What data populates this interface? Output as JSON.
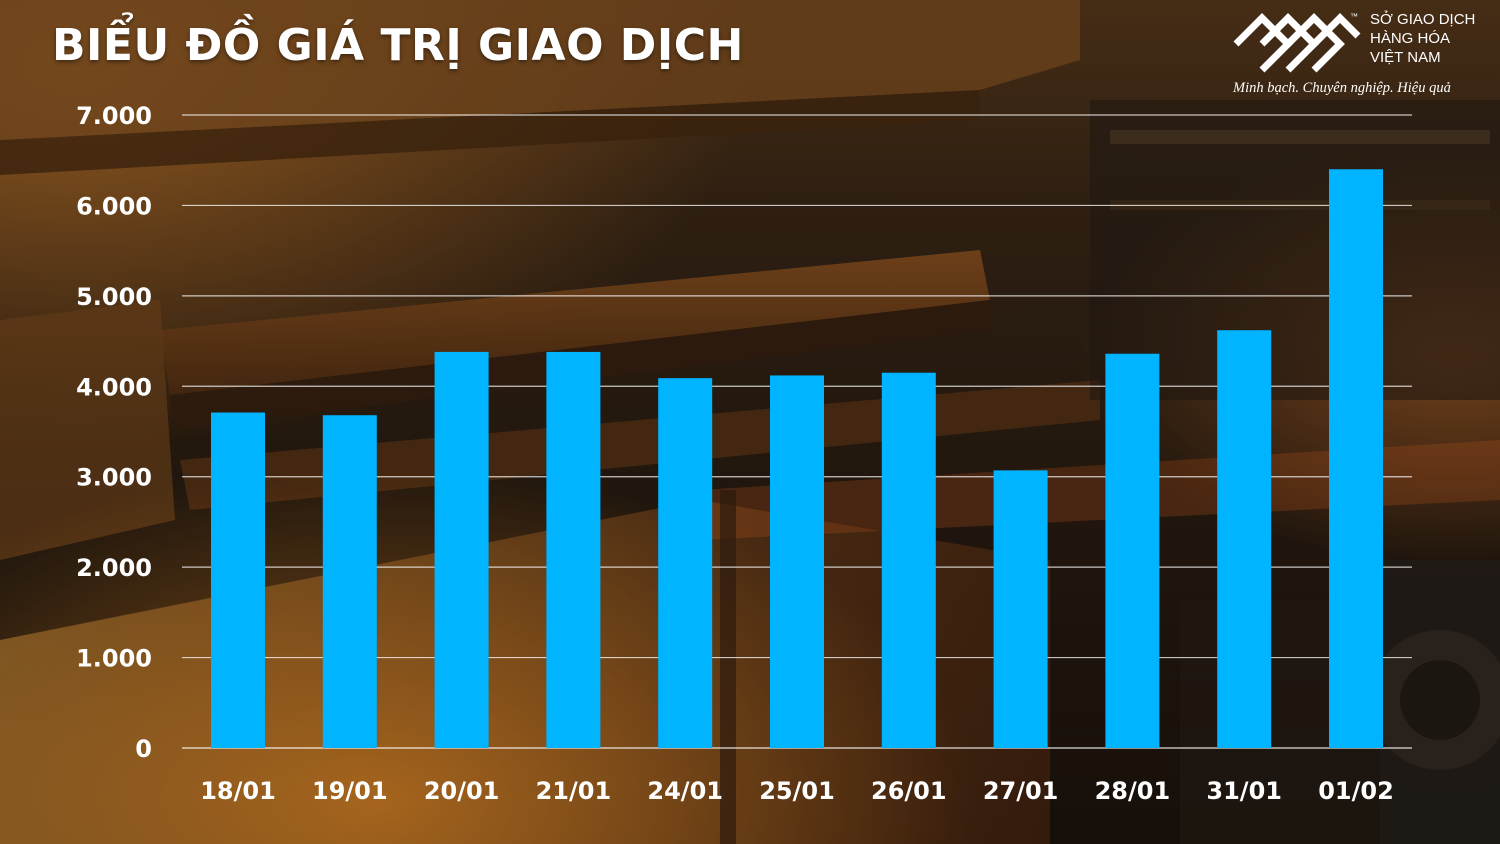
{
  "title": "BIỂU ĐỒ GIÁ TRỊ GIAO DỊCH",
  "logo": {
    "line1": "SỞ GIAO DỊCH",
    "line2": "HÀNG HÓA",
    "line3": "VIỆT NAM",
    "trademark": "™",
    "tagline": "Minh bạch. Chuyên nghiệp. Hiệu quả"
  },
  "colors": {
    "bar": "#00b4ff",
    "gridline": "#ffffff",
    "text": "#ffffff"
  },
  "chart_data": {
    "type": "bar",
    "title": "BIỂU ĐỒ GIÁ TRỊ GIAO DỊCH",
    "xlabel": "",
    "ylabel": "",
    "ylim": [
      0,
      7000
    ],
    "grid": true,
    "yticks": [
      {
        "value": 0,
        "label": "0"
      },
      {
        "value": 1000,
        "label": "1.000"
      },
      {
        "value": 2000,
        "label": "2.000"
      },
      {
        "value": 3000,
        "label": "3.000"
      },
      {
        "value": 4000,
        "label": "4.000"
      },
      {
        "value": 5000,
        "label": "5.000"
      },
      {
        "value": 6000,
        "label": "6.000"
      },
      {
        "value": 7000,
        "label": "7.000"
      }
    ],
    "categories": [
      "18/01",
      "19/01",
      "20/01",
      "21/01",
      "24/01",
      "25/01",
      "26/01",
      "27/01",
      "28/01",
      "31/01",
      "01/02"
    ],
    "values": [
      3710,
      3680,
      4380,
      4380,
      4090,
      4120,
      4150,
      3070,
      4360,
      4620,
      6400
    ]
  }
}
